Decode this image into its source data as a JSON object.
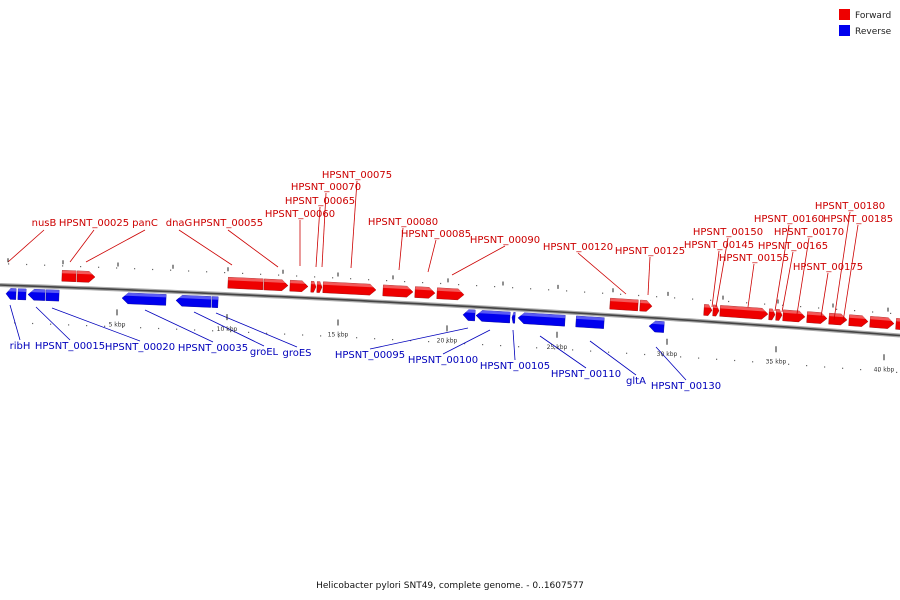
{
  "legend": {
    "forward": {
      "label": "Forward",
      "color": "#ee0000"
    },
    "reverse": {
      "label": "Reverse",
      "color": "#0000ee"
    }
  },
  "caption": "Helicobacter pylori SNT49, complete genome. - 0..1607577",
  "axis_ticks": [
    "5 kbp",
    "10 kbp",
    "15 kbp",
    "20 kbp",
    "25 kbp",
    "30 kbp",
    "35 kbp",
    "40 kbp"
  ],
  "forward_labels": [
    "nusB",
    "HPSNT_00025",
    "panC",
    "dnaG",
    "HPSNT_00055",
    "HPSNT_00060",
    "HPSNT_00065",
    "HPSNT_00070",
    "HPSNT_00075",
    "HPSNT_00080",
    "HPSNT_00085",
    "HPSNT_00090",
    "HPSNT_00120",
    "HPSNT_00125",
    "HPSNT_00145",
    "HPSNT_00150",
    "HPSNT_00155",
    "HPSNT_00160",
    "HPSNT_00165",
    "HPSNT_00170",
    "HPSNT_00175",
    "HPSNT_00180",
    "HPSNT_00185"
  ],
  "reverse_labels": [
    "ribH",
    "HPSNT_00015",
    "HPSNT_00020",
    "HPSNT_00035",
    "groEL",
    "groES",
    "HPSNT_00095",
    "HPSNT_00100",
    "HPSNT_00105",
    "HPSNT_00110",
    "gltA",
    "HPSNT_00130"
  ]
}
